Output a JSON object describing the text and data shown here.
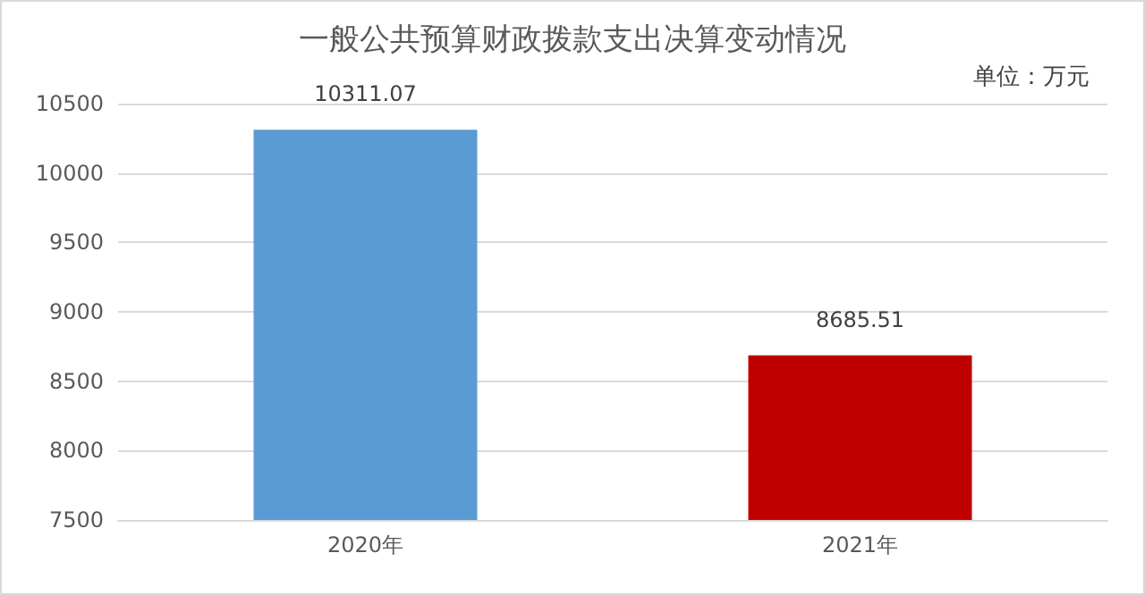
{
  "chart_data": {
    "type": "bar",
    "title": "一般公共预算财政拨款支出决算变动情况",
    "annotations": [
      "单位：万元"
    ],
    "categories": [
      "2020年",
      "2021年"
    ],
    "values": [
      10311.07,
      8685.51
    ],
    "colors": [
      "#5b9bd5",
      "#c00000"
    ],
    "ylim": [
      7500,
      10500
    ],
    "yticks": [
      7500,
      8000,
      8500,
      9000,
      9500,
      10000,
      10500
    ],
    "grid": "y",
    "data_labels": true
  }
}
